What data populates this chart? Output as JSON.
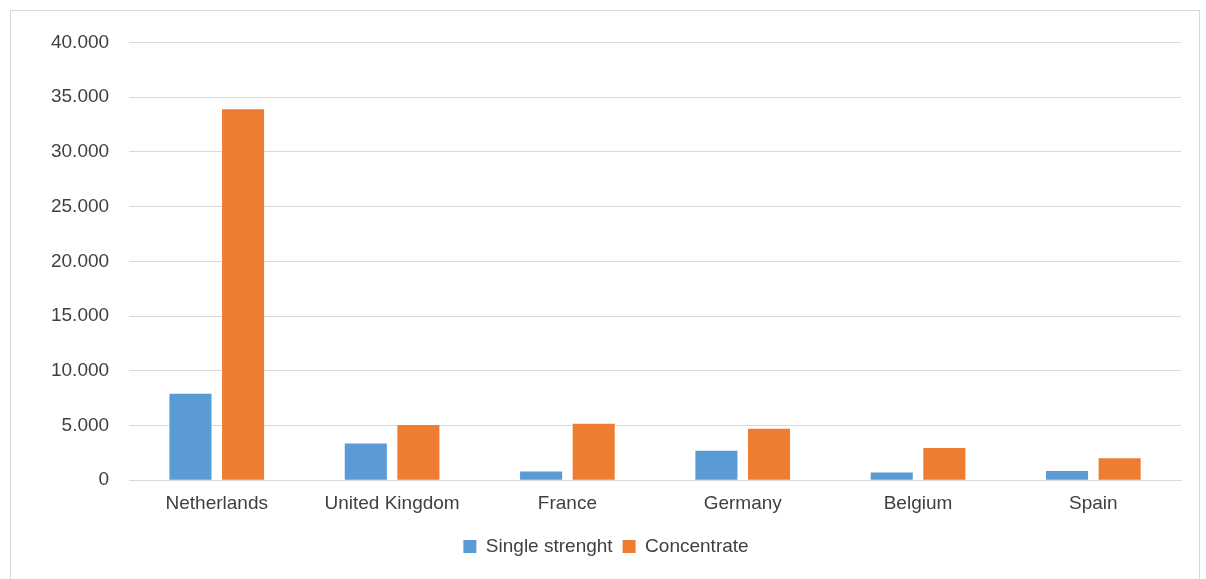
{
  "chart_data": {
    "type": "bar",
    "categories": [
      "Netherlands",
      "United Kingdom",
      "France",
      "Germany",
      "Belgium",
      "Spain"
    ],
    "series": [
      {
        "name": "Single strenght",
        "color": "#5b9bd5",
        "values": [
          7900,
          3350,
          800,
          2700,
          700,
          850
        ]
      },
      {
        "name": "Concentrate",
        "color": "#ed7d31",
        "values": [
          33900,
          5050,
          5150,
          4700,
          2950,
          2000
        ]
      }
    ],
    "ylim": [
      0,
      40000
    ],
    "yticks": [
      {
        "value": 0,
        "label": "0"
      },
      {
        "value": 5000,
        "label": "5.000"
      },
      {
        "value": 10000,
        "label": "10.000"
      },
      {
        "value": 15000,
        "label": "15.000"
      },
      {
        "value": 20000,
        "label": "20.000"
      },
      {
        "value": 25000,
        "label": "25.000"
      },
      {
        "value": 30000,
        "label": "30.000"
      },
      {
        "value": 35000,
        "label": "35.000"
      },
      {
        "value": 40000,
        "label": "40.000"
      }
    ],
    "grid": "y",
    "legend": "bottom"
  }
}
